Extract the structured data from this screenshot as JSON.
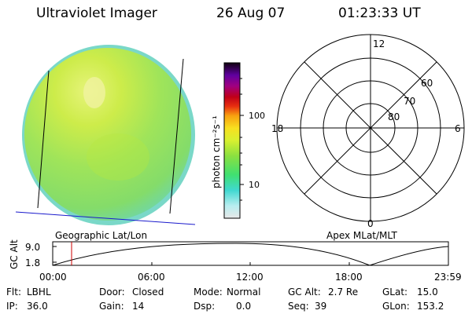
{
  "header": {
    "instrument": "Ultraviolet Imager",
    "date": "26 Aug 07",
    "time": "01:23:33 UT"
  },
  "colorbar": {
    "unit_label": "photon cm⁻²s⁻¹",
    "ticks": [
      "100",
      "10"
    ]
  },
  "panel_labels": {
    "left": "Geographic Lat/Lon",
    "right": "Apex MLat/MLT"
  },
  "polar": {
    "mlt_labels": {
      "top": "12",
      "left": "18",
      "right": "6",
      "bottom": "0"
    },
    "lat_labels": [
      "60",
      "70",
      "80"
    ]
  },
  "alt_plot": {
    "ylabel": "GC Alt",
    "yticks": [
      "9.0",
      "1.8"
    ],
    "xticks": [
      "00:00",
      "06:00",
      "12:00",
      "18:00",
      "23:59"
    ],
    "current_marker_time": "01:23"
  },
  "status": {
    "row1": [
      {
        "label": "Flt:",
        "value": "LBHL"
      },
      {
        "label": "Door:",
        "value": "Closed"
      },
      {
        "label": "Mode:",
        "value": "Normal"
      },
      {
        "label": "GC Alt:",
        "value": "2.7 Re"
      },
      {
        "label": "GLat:",
        "value": "15.0"
      }
    ],
    "row2": [
      {
        "label": "IP:",
        "value": "36.0"
      },
      {
        "label": "Gain:",
        "value": "14"
      },
      {
        "label": "Dsp:",
        "value": "0.0"
      },
      {
        "label": "Seq:",
        "value": "39"
      },
      {
        "label": "GLon:",
        "value": "153.2"
      }
    ]
  },
  "colors": {
    "marker": "#cc0000",
    "coastline": "#1a1acc"
  }
}
